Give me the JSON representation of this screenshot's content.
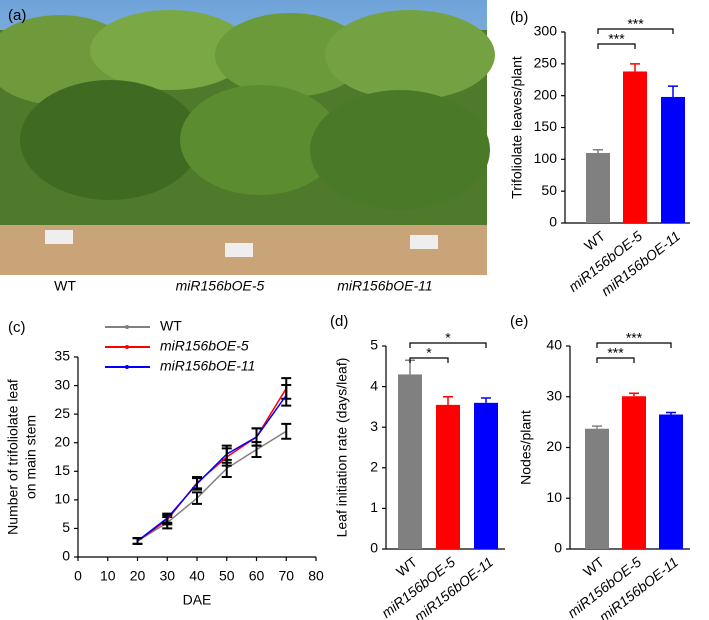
{
  "photo": {
    "panel_label": "(a)",
    "captions": [
      "WT",
      "miR156bOE-5",
      "miR156bOE-11"
    ]
  },
  "chart_data": [
    {
      "type": "bar",
      "panel_label": "(b)",
      "ylabel": "Trifoliolate leaves/plant",
      "categories": [
        "WT",
        "miR156bOE-5",
        "miR156bOE-11"
      ],
      "values": [
        110,
        238,
        198
      ],
      "errors": [
        5,
        12,
        17
      ],
      "colors": [
        "#808080",
        "#ff0000",
        "#0000ff"
      ],
      "ylim": [
        0,
        300
      ],
      "yticks": [
        0,
        50,
        100,
        150,
        200,
        250,
        300
      ],
      "significance": [
        "***",
        "***"
      ]
    },
    {
      "type": "line",
      "panel_label": "(c)",
      "ylabel": [
        "Number of  trifoliolate leaf",
        "on main stem"
      ],
      "xlabel": "DAE",
      "x": [
        20,
        30,
        40,
        50,
        60,
        70
      ],
      "series": [
        {
          "name": "WT",
          "color": "#808080",
          "values": [
            2.8,
            6,
            10.3,
            15.5,
            18.8,
            22
          ],
          "errors": [
            0.5,
            1,
            1,
            1.5,
            1.3,
            1.3
          ]
        },
        {
          "name": "miR156bOE-5",
          "color": "#ff0000",
          "values": [
            2.8,
            6.5,
            13,
            17.5,
            21,
            29.5
          ],
          "errors": [
            0.5,
            0.8,
            1,
            1.5,
            1.5,
            1.8
          ]
        },
        {
          "name": "miR156bOE-11",
          "color": "#0000ff",
          "values": [
            2.8,
            6.8,
            12.8,
            18,
            21,
            28.3
          ],
          "errors": [
            0.5,
            0.8,
            1,
            1.5,
            1.5,
            1.8
          ]
        }
      ],
      "xlim": [
        0,
        80
      ],
      "xticks": [
        0,
        10,
        20,
        30,
        40,
        50,
        60,
        70,
        80
      ],
      "ylim": [
        0,
        35
      ],
      "yticks": [
        0,
        5,
        10,
        15,
        20,
        25,
        30,
        35
      ]
    },
    {
      "type": "bar",
      "panel_label": "(d)",
      "ylabel": "Leaf initiation rate (days/leaf)",
      "categories": [
        "WT",
        "miR156bOE-5",
        "miR156bOE-11"
      ],
      "values": [
        4.3,
        3.55,
        3.6
      ],
      "errors": [
        0.35,
        0.2,
        0.12
      ],
      "colors": [
        "#808080",
        "#ff0000",
        "#0000ff"
      ],
      "ylim": [
        0,
        5
      ],
      "yticks": [
        0,
        1,
        2,
        3,
        4,
        5
      ],
      "significance": [
        "*",
        "*"
      ]
    },
    {
      "type": "bar",
      "panel_label": "(e)",
      "ylabel": "Nodes/plant",
      "categories": [
        "WT",
        "miR156bOE-5",
        "miR156bOE-11"
      ],
      "values": [
        23.7,
        30.1,
        26.5
      ],
      "errors": [
        0.5,
        0.6,
        0.4
      ],
      "colors": [
        "#808080",
        "#ff0000",
        "#0000ff"
      ],
      "ylim": [
        0,
        40
      ],
      "yticks": [
        0,
        10,
        20,
        30,
        40
      ],
      "significance": [
        "***",
        "***"
      ]
    }
  ]
}
